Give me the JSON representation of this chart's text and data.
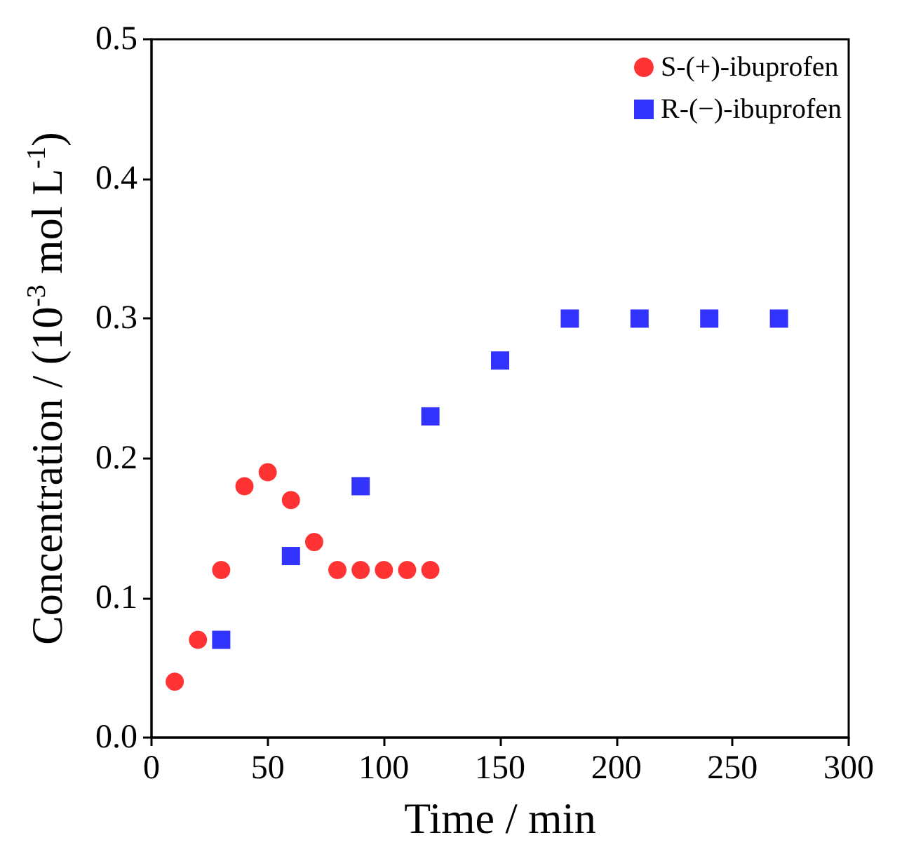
{
  "chart_data": {
    "type": "scatter",
    "xlabel": "Time / min",
    "ylabel": "Concentration / (10$^{-3}$ mol L$^{-1}$)",
    "xlim": [
      0,
      300
    ],
    "xticks": [
      0,
      50,
      100,
      150,
      200,
      250,
      300
    ],
    "ylim": [
      0,
      0.5
    ],
    "yticks": [
      {
        "value": 0,
        "label": "0.0"
      },
      {
        "value": 0.1,
        "label": "0.1"
      },
      {
        "value": 0.2,
        "label": "0.2"
      },
      {
        "value": 0.3,
        "label": "0.3"
      },
      {
        "value": 0.4,
        "label": "0.4"
      },
      {
        "value": 0.5,
        "label": "0.5"
      }
    ],
    "grid": false,
    "legend": "top right",
    "series": [
      {
        "name": "S-(+)-ibuprofen",
        "color": "#ff0000",
        "marker": "circle",
        "x": [
          10,
          20,
          30,
          40,
          50,
          60,
          70,
          80,
          90,
          100,
          110,
          120
        ],
        "values": [
          0.04,
          0.07,
          0.12,
          0.18,
          0.19,
          0.17,
          0.14,
          0.12,
          0.12,
          0.12,
          0.12,
          0.12
        ]
      },
      {
        "name": "R-(−)-ibuprofen",
        "color": "#0000ff",
        "marker": "square",
        "x": [
          30,
          60,
          90,
          120,
          150,
          180,
          210,
          240,
          270
        ],
        "values": [
          0.07,
          0.13,
          0.18,
          0.23,
          0.27,
          0.3,
          0.3,
          0.3,
          0.3
        ]
      }
    ]
  }
}
